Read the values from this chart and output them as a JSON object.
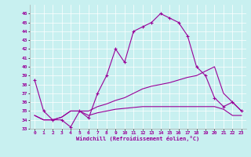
{
  "title": "",
  "xlabel": "Windchill (Refroidissement éolien,°C)",
  "background_color": "#c8f0f0",
  "line_color": "#990099",
  "xlim": [
    -0.5,
    23.5
  ],
  "ylim": [
    33,
    47
  ],
  "yticks": [
    33,
    34,
    35,
    36,
    37,
    38,
    39,
    40,
    41,
    42,
    43,
    44,
    45,
    46
  ],
  "xticks": [
    0,
    1,
    2,
    3,
    4,
    5,
    6,
    7,
    8,
    9,
    10,
    11,
    12,
    13,
    14,
    15,
    16,
    17,
    18,
    19,
    20,
    21,
    22,
    23
  ],
  "line1_x": [
    0,
    1,
    2,
    3,
    4,
    5,
    6,
    7,
    8,
    9,
    10,
    11,
    12,
    13,
    14,
    15,
    16,
    17,
    18,
    19,
    20,
    21,
    22,
    23
  ],
  "line1_y": [
    38.5,
    35.0,
    34.0,
    34.0,
    33.2,
    35.0,
    34.2,
    37.0,
    39.0,
    42.0,
    40.5,
    44.0,
    44.5,
    45.0,
    46.0,
    45.5,
    45.0,
    43.5,
    40.0,
    39.0,
    36.5,
    35.5,
    36.0,
    35.0
  ],
  "line2_x": [
    0,
    1,
    2,
    3,
    4,
    5,
    6,
    7,
    8,
    9,
    10,
    11,
    12,
    13,
    14,
    15,
    16,
    17,
    18,
    19,
    20,
    21,
    22,
    23
  ],
  "line2_y": [
    34.5,
    34.0,
    34.0,
    34.3,
    35.0,
    35.0,
    35.0,
    35.5,
    35.8,
    36.2,
    36.5,
    37.0,
    37.5,
    37.8,
    38.0,
    38.2,
    38.5,
    38.8,
    39.0,
    39.5,
    40.0,
    37.0,
    36.0,
    35.0
  ],
  "line3_x": [
    0,
    1,
    2,
    3,
    4,
    5,
    6,
    7,
    8,
    9,
    10,
    11,
    12,
    13,
    14,
    15,
    16,
    17,
    18,
    19,
    20,
    21,
    22,
    23
  ],
  "line3_y": [
    34.5,
    34.0,
    34.0,
    34.3,
    35.0,
    35.0,
    34.5,
    34.8,
    35.0,
    35.2,
    35.3,
    35.4,
    35.5,
    35.5,
    35.5,
    35.5,
    35.5,
    35.5,
    35.5,
    35.5,
    35.5,
    35.2,
    34.5,
    34.5
  ]
}
